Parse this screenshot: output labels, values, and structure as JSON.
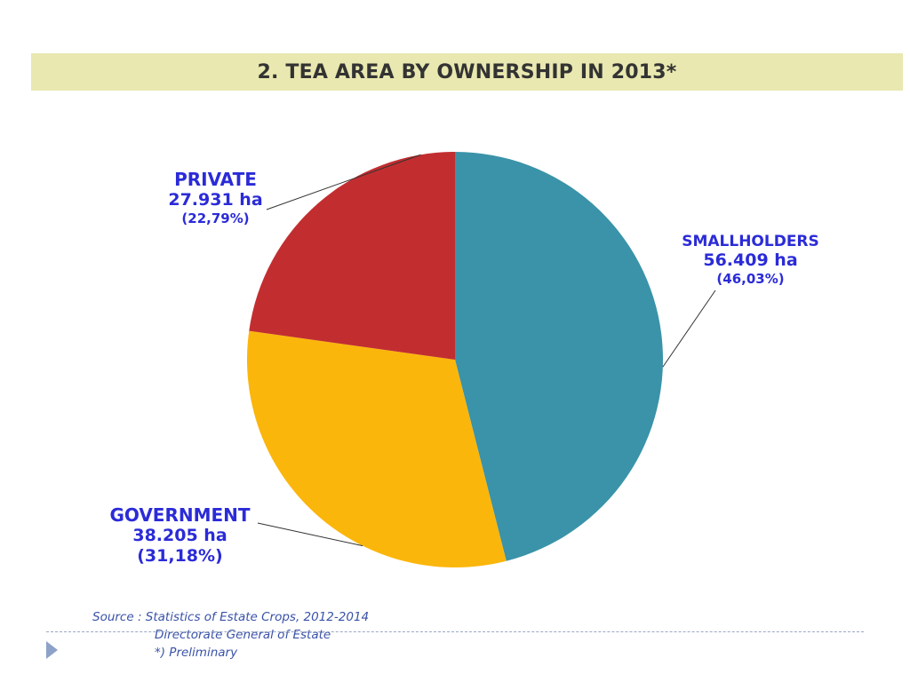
{
  "title": "2. TEA AREA BY OWNERSHIP IN 2013*",
  "chart_data": {
    "type": "pie",
    "title": "2. TEA AREA BY OWNERSHIP IN 2013*",
    "slices": [
      {
        "name": "SMALLHOLDERS",
        "value": 56409,
        "value_label": "56.409 ha",
        "percent": 46.03,
        "percent_label": "(46,03%)",
        "color": "#3a93a8"
      },
      {
        "name": "GOVERNMENT",
        "value": 38205,
        "value_label": "38.205 ha",
        "percent": 31.18,
        "percent_label": "(31,18%)",
        "color": "#fbb60c"
      },
      {
        "name": "PRIVATE",
        "value": 27931,
        "value_label": "27.931 ha",
        "percent": 22.79,
        "percent_label": "(22,79%)",
        "color": "#c22e30"
      }
    ],
    "start_angle": "12 o'clock, clockwise"
  },
  "source": {
    "line1": "Source :  Statistics of Estate Crops, 2012-2014",
    "line2": "Directorate General of Estate",
    "line3": "*) Preliminary"
  },
  "colors": {
    "title_band": "#e8e8b0",
    "label_text": "#2b2bd8",
    "source_text": "#3a52a8"
  }
}
